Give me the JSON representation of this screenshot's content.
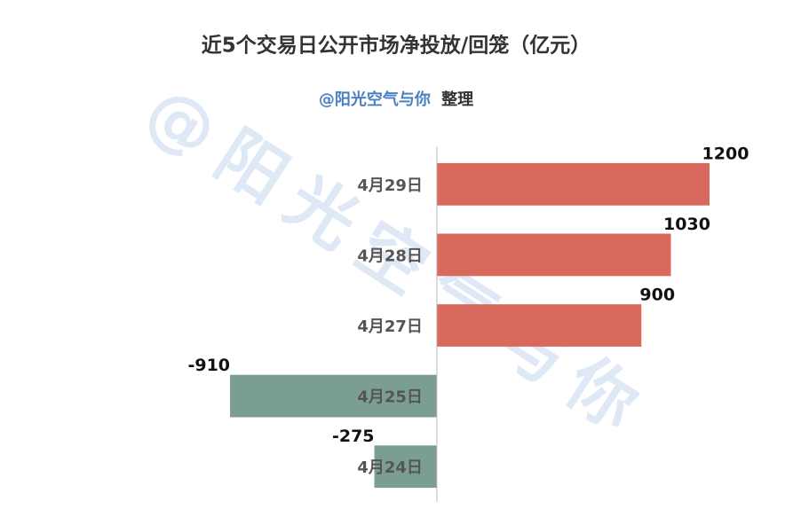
{
  "chart_data": {
    "type": "bar",
    "orientation": "horizontal",
    "title": "近5个交易日公开市场净投放/回笼（亿元）",
    "subtitle": {
      "source": "@阳光空气与你",
      "suffix": "整理"
    },
    "watermark": "@阳光空气与你",
    "categories": [
      "4月29日",
      "4月28日",
      "4月27日",
      "4月25日",
      "4月24日"
    ],
    "values": [
      1200,
      1030,
      900,
      -910,
      -275
    ],
    "color": "#d9695d",
    "negative_color": "#7a9e93",
    "xlim": [
      -1000,
      1200
    ]
  }
}
